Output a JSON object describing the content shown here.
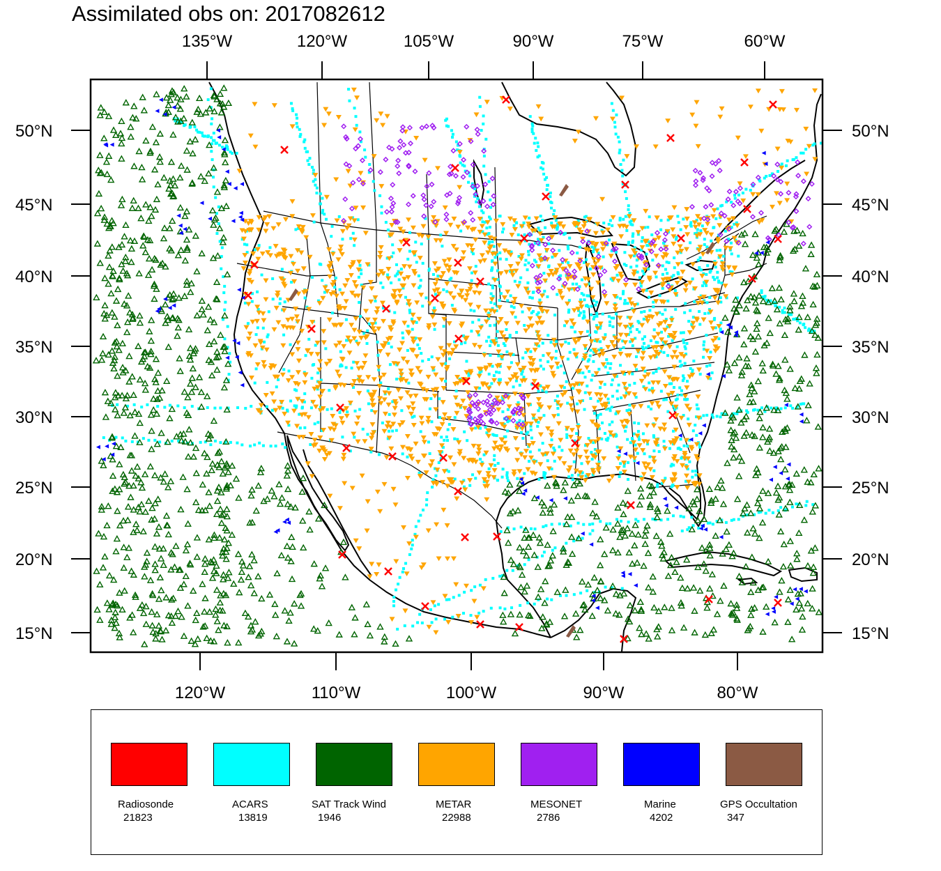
{
  "title": "Assimilated obs on: 2017082612",
  "map": {
    "top_lon_labels": [
      "135°W",
      "120°W",
      "105°W",
      "90°W",
      "75°W",
      "60°W"
    ],
    "bottom_lon_labels": [
      "120°W",
      "110°W",
      "100°W",
      "90°W",
      "80°W"
    ],
    "lat_labels": [
      "50°N",
      "45°N",
      "40°N",
      "35°N",
      "30°N",
      "25°N",
      "20°N",
      "15°N"
    ]
  },
  "legend": [
    {
      "name": "Radiosonde",
      "count": "21823",
      "color": "#ff0000"
    },
    {
      "name": "ACARS",
      "count": "13819",
      "color": "#00ffff"
    },
    {
      "name": "SAT Track Wind",
      "count": "1946",
      "color": "#006400"
    },
    {
      "name": "METAR",
      "count": "22988",
      "color": "#ffa500"
    },
    {
      "name": "MESONET",
      "count": "2786",
      "color": "#a020f0"
    },
    {
      "name": "Marine",
      "count": "4202",
      "color": "#0000ff"
    },
    {
      "name": "GPS Occultation",
      "count": "347",
      "color": "#8b5a44"
    }
  ]
}
